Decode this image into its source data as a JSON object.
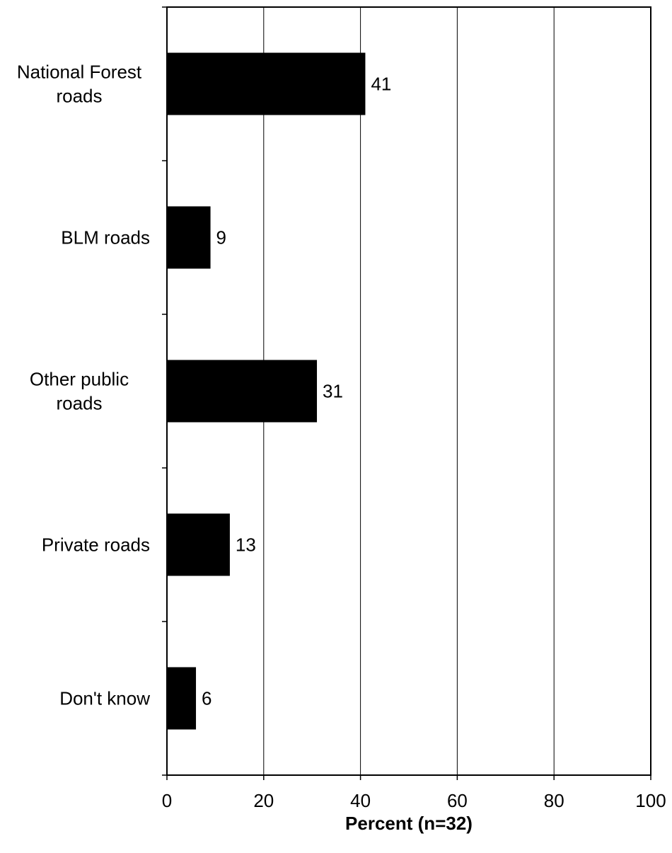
{
  "chart_data": {
    "type": "bar",
    "orientation": "horizontal",
    "title": "",
    "xlabel": "Percent (n=32)",
    "ylabel": "",
    "categories": [
      [
        "National Forest",
        "roads"
      ],
      [
        "BLM roads"
      ],
      [
        "Other public",
        "roads"
      ],
      [
        "Private roads"
      ],
      [
        "Don't know"
      ]
    ],
    "values": [
      41,
      9,
      31,
      13,
      6
    ],
    "data_labels": [
      "41",
      "9",
      "31",
      "13",
      "6"
    ],
    "xlim": [
      0,
      100
    ],
    "xticks": [
      0,
      20,
      40,
      60,
      80,
      100
    ],
    "xtick_labels": [
      "0",
      "20",
      "40",
      "60",
      "80",
      "100"
    ],
    "grid": "vertical",
    "legend": "none",
    "bar_color": "#000000"
  }
}
